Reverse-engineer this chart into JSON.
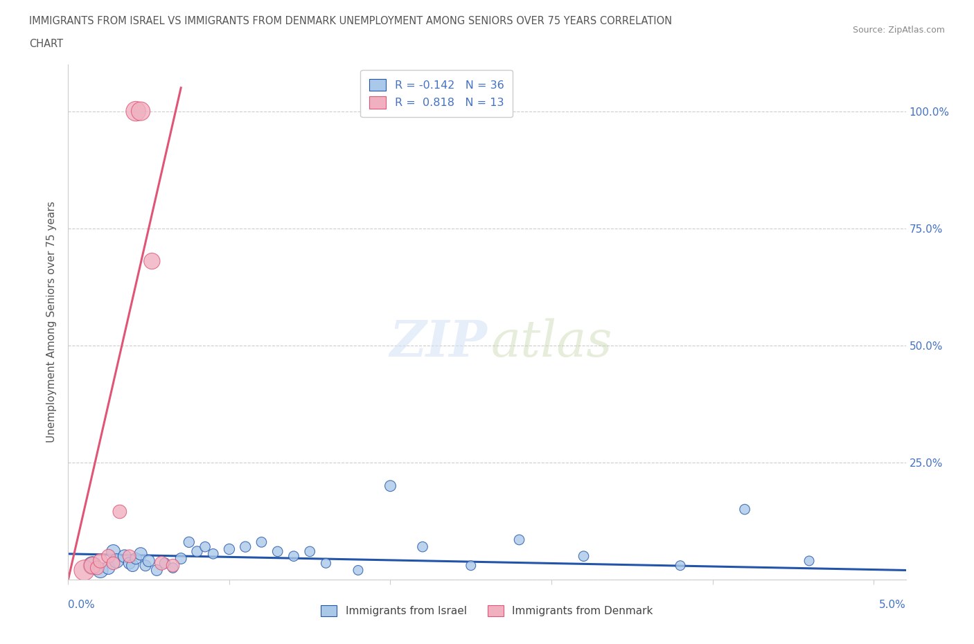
{
  "title_line1": "IMMIGRANTS FROM ISRAEL VS IMMIGRANTS FROM DENMARK UNEMPLOYMENT AMONG SENIORS OVER 75 YEARS CORRELATION",
  "title_line2": "CHART",
  "source": "Source: ZipAtlas.com",
  "ylabel": "Unemployment Among Seniors over 75 years",
  "blue_R": -0.142,
  "blue_N": 36,
  "pink_R": 0.818,
  "pink_N": 13,
  "blue_color": "#aac8e8",
  "pink_color": "#f0b0c0",
  "blue_line_color": "#2255aa",
  "pink_line_color": "#e05575",
  "legend_blue_label": "Immigrants from Israel",
  "legend_pink_label": "Immigrants from Denmark",
  "blue_scatter_x": [
    0.0015,
    0.002,
    0.0025,
    0.0028,
    0.003,
    0.0035,
    0.0038,
    0.004,
    0.0042,
    0.0045,
    0.0048,
    0.005,
    0.0055,
    0.006,
    0.0065,
    0.007,
    0.0075,
    0.008,
    0.0085,
    0.009,
    0.01,
    0.011,
    0.012,
    0.013,
    0.014,
    0.015,
    0.016,
    0.018,
    0.02,
    0.022,
    0.025,
    0.028,
    0.032,
    0.038,
    0.042,
    0.046
  ],
  "blue_scatter_y": [
    0.03,
    0.02,
    0.025,
    0.06,
    0.04,
    0.05,
    0.035,
    0.03,
    0.045,
    0.055,
    0.03,
    0.04,
    0.02,
    0.035,
    0.025,
    0.045,
    0.08,
    0.06,
    0.07,
    0.055,
    0.065,
    0.07,
    0.08,
    0.06,
    0.05,
    0.06,
    0.035,
    0.02,
    0.2,
    0.07,
    0.03,
    0.085,
    0.05,
    0.03,
    0.15,
    0.04
  ],
  "blue_scatter_size": [
    350,
    250,
    180,
    200,
    220,
    180,
    150,
    160,
    140,
    170,
    130,
    150,
    130,
    120,
    110,
    130,
    120,
    120,
    110,
    110,
    120,
    120,
    110,
    110,
    110,
    110,
    100,
    100,
    130,
    110,
    100,
    110,
    110,
    100,
    110,
    100
  ],
  "pink_scatter_x": [
    0.001,
    0.0015,
    0.0018,
    0.002,
    0.0025,
    0.0028,
    0.0032,
    0.0038,
    0.0042,
    0.0045,
    0.0052,
    0.0058,
    0.0065
  ],
  "pink_scatter_y": [
    0.02,
    0.03,
    0.025,
    0.04,
    0.05,
    0.035,
    0.145,
    0.05,
    1.0,
    1.0,
    0.68,
    0.035,
    0.03
  ],
  "pink_scatter_size": [
    450,
    300,
    200,
    220,
    200,
    180,
    200,
    180,
    420,
    380,
    280,
    200,
    180
  ],
  "blue_trend_x": [
    0.0,
    0.052
  ],
  "blue_trend_y": [
    0.055,
    0.02
  ],
  "pink_trend_x": [
    0.0,
    0.007
  ],
  "pink_trend_y": [
    0.0,
    1.05
  ],
  "xlim": [
    0.0,
    0.052
  ],
  "ylim": [
    0.0,
    1.1
  ],
  "xtick_positions": [
    0.0,
    0.01,
    0.02,
    0.03,
    0.04,
    0.05
  ],
  "ytick_positions": [
    0.0,
    0.25,
    0.5,
    0.75,
    1.0
  ],
  "right_ytick_labels": [
    "",
    "25.0%",
    "50.0%",
    "75.0%",
    "100.0%"
  ],
  "title_color": "#555555",
  "axis_label_color": "#4472c4",
  "source_color": "#888888",
  "grid_color": "#cccccc",
  "spine_color": "#cccccc"
}
